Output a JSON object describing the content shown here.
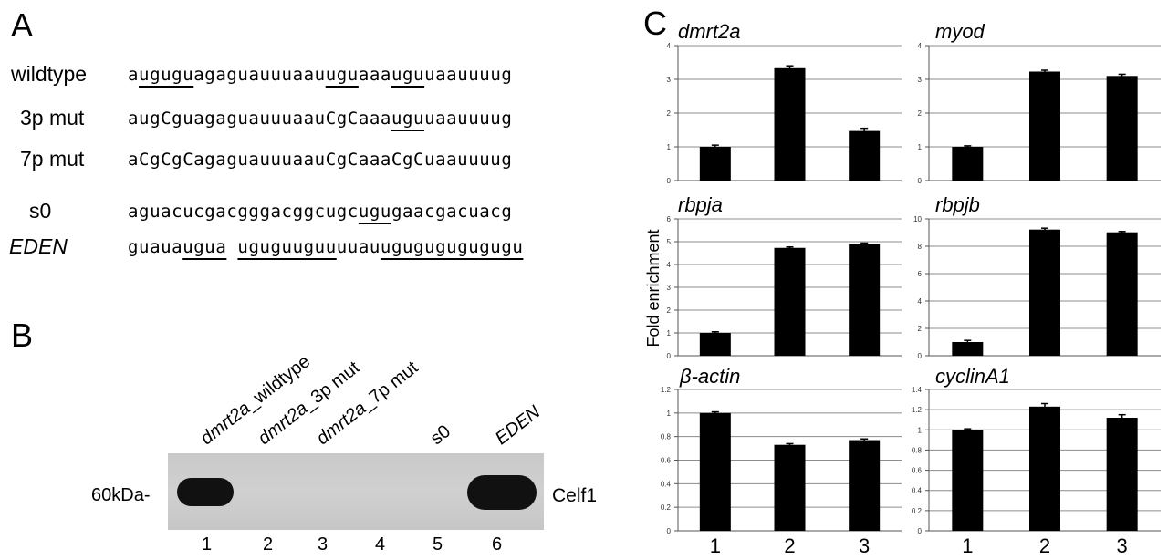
{
  "panel_a": {
    "letter": "A",
    "rows": [
      {
        "label": "wildtype",
        "italic": false,
        "segments": [
          {
            "t": "a",
            "u": false
          },
          {
            "t": "ugugu",
            "u": true
          },
          {
            "t": "agaguauuuaau",
            "u": false
          },
          {
            "t": "ugu",
            "u": true
          },
          {
            "t": "aaa",
            "u": false
          },
          {
            "t": "ugu",
            "u": true
          },
          {
            "t": "uaauuuug",
            "u": false
          }
        ]
      },
      {
        "label": "3p mut",
        "italic": false,
        "segments": [
          {
            "t": "augCguagaguauuuaauCgCaaa",
            "u": false
          },
          {
            "t": "ugu",
            "u": true
          },
          {
            "t": "uaauuuug",
            "u": false
          }
        ]
      },
      {
        "label": "7p mut",
        "italic": false,
        "segments": [
          {
            "t": "aCgCgCagaguauuuaauCgCaaaCgCuaauuuug",
            "u": false
          }
        ]
      },
      {
        "label": "s0",
        "italic": false,
        "segments": [
          {
            "t": "aguacucgacgggacggcugc",
            "u": false
          },
          {
            "t": "ugu",
            "u": true
          },
          {
            "t": "gaacgacuacg",
            "u": false
          }
        ]
      },
      {
        "label": "EDEN",
        "italic": true,
        "segments": [
          {
            "t": "guaua",
            "u": false
          },
          {
            "t": "ugua",
            "u": true
          },
          {
            "t": " ",
            "u": false
          },
          {
            "t": "uguguuguu",
            "u": true
          },
          {
            "t": "uuau",
            "u": false
          },
          {
            "t": "ugugugugugugu",
            "u": true
          }
        ]
      }
    ]
  },
  "panel_b": {
    "letter": "B",
    "lanes": [
      {
        "italic": "dmrt2a",
        "rest": "_wildtype"
      },
      {
        "italic": "dmrt2a",
        "rest": "_3p mut"
      },
      {
        "italic": "dmrt2a",
        "rest": "_7p mut"
      },
      {
        "italic": "",
        "rest": "s0"
      },
      {
        "italic": "EDEN",
        "rest": ""
      }
    ],
    "lane_numbers": [
      "1",
      "2",
      "3",
      "4",
      "5",
      "6"
    ],
    "marker": "60kDa-",
    "protein": "Celf1"
  },
  "panel_c": {
    "letter": "C",
    "ylabel": "Fold enrichment",
    "xlabels": [
      "1",
      "2",
      "3"
    ]
  },
  "chart_data": [
    {
      "type": "bar",
      "title": "dmrt2a",
      "categories": [
        "1",
        "2",
        "3"
      ],
      "values": [
        1.0,
        3.33,
        1.47
      ],
      "errors": [
        0.05,
        0.07,
        0.08
      ],
      "ylim": [
        0,
        4
      ],
      "yticks": [
        "0",
        "1",
        "2",
        "3",
        "4"
      ],
      "grid": true
    },
    {
      "type": "bar",
      "title": "myod",
      "categories": [
        "1",
        "2",
        "3"
      ],
      "values": [
        1.0,
        3.23,
        3.1
      ],
      "errors": [
        0.03,
        0.04,
        0.05
      ],
      "ylim": [
        0,
        4
      ],
      "yticks": [
        "0",
        "1",
        "2",
        "3",
        "4"
      ],
      "grid": true
    },
    {
      "type": "bar",
      "title": "rbpja",
      "categories": [
        "1",
        "2",
        "3"
      ],
      "values": [
        1.0,
        4.73,
        4.9
      ],
      "errors": [
        0.05,
        0.04,
        0.04
      ],
      "ylim": [
        0,
        6
      ],
      "yticks": [
        "0",
        "1",
        "2",
        "3",
        "4",
        "5",
        "6"
      ],
      "grid": true
    },
    {
      "type": "bar",
      "title": "rbpjb",
      "categories": [
        "1",
        "2",
        "3"
      ],
      "values": [
        1.0,
        9.22,
        9.02
      ],
      "errors": [
        0.12,
        0.1,
        0.06
      ],
      "ylim": [
        0,
        10
      ],
      "yticks": [
        "0",
        "2",
        "4",
        "6",
        "8",
        "10"
      ],
      "grid": true
    },
    {
      "type": "bar",
      "title": "β-actin",
      "categories": [
        "1",
        "2",
        "3"
      ],
      "values": [
        1.0,
        0.73,
        0.77
      ],
      "errors": [
        0.01,
        0.01,
        0.01
      ],
      "ylim": [
        0,
        1.2
      ],
      "yticks": [
        "0",
        "0.2",
        "0.4",
        "0.6",
        "0.8",
        "1",
        "1.2"
      ],
      "grid": true
    },
    {
      "type": "bar",
      "title": "cyclinA1",
      "categories": [
        "1",
        "2",
        "3"
      ],
      "values": [
        1.0,
        1.23,
        1.12
      ],
      "errors": [
        0.01,
        0.03,
        0.03
      ],
      "ylim": [
        0,
        1.4
      ],
      "yticks": [
        "0",
        "0.2",
        "0.4",
        "0.6",
        "0.8",
        "1",
        "1.2",
        "1.4"
      ],
      "grid": true
    }
  ]
}
